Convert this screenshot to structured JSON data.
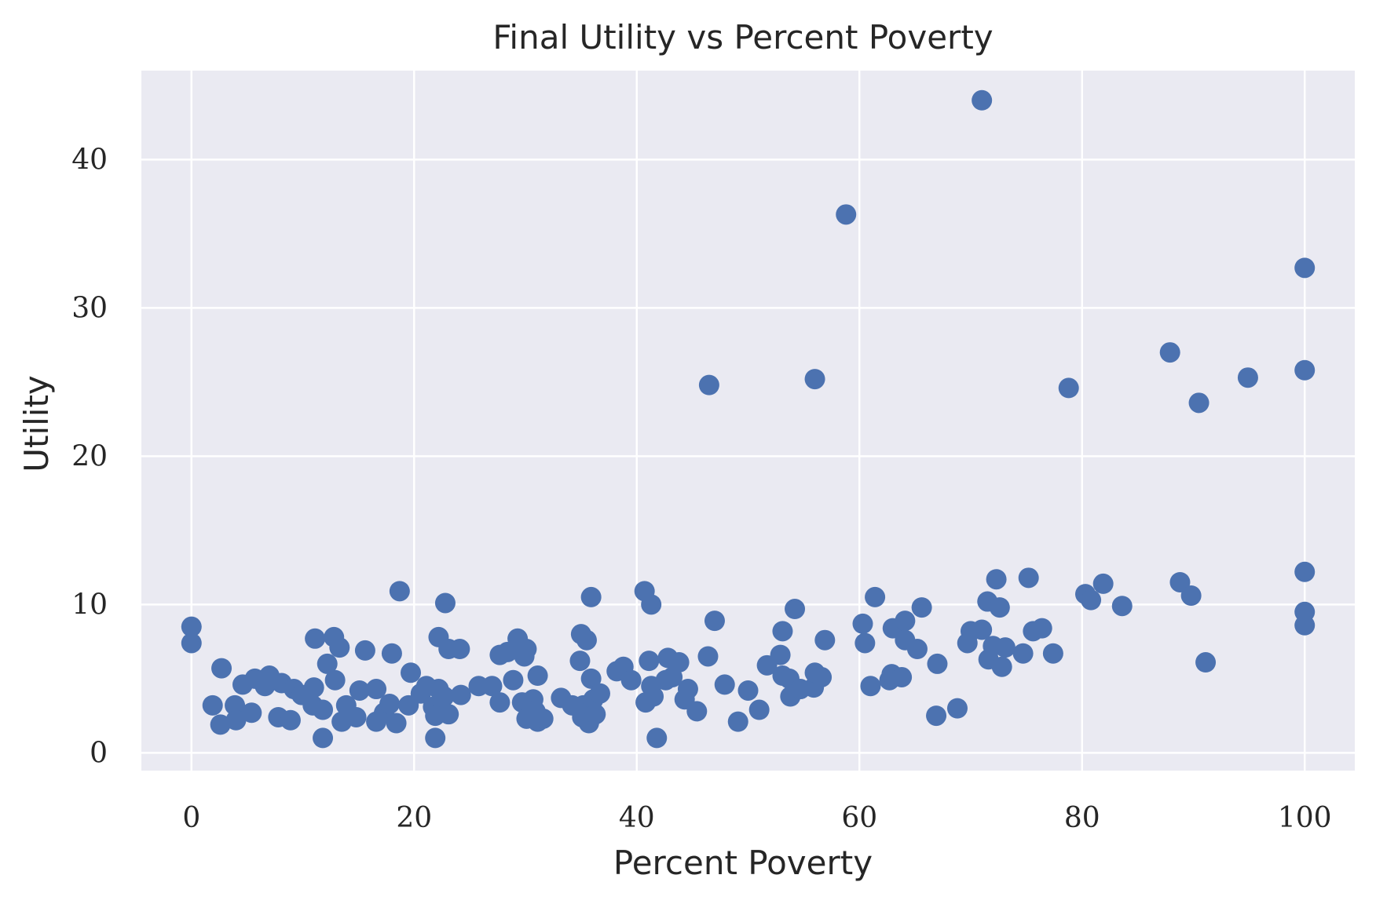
{
  "chart_data": {
    "type": "scatter",
    "title": "Final Utility vs Percent Poverty",
    "xlabel": "Percent Poverty",
    "ylabel": "Utility",
    "xlim": [
      -4.5,
      104.5
    ],
    "ylim": [
      -1.2,
      46
    ],
    "xticks": [
      0,
      20,
      40,
      60,
      80,
      100
    ],
    "yticks": [
      0,
      10,
      20,
      30,
      40
    ],
    "grid": true,
    "colors": {
      "background": "#eaeaf2",
      "grid": "#ffffff",
      "marker": "#4c72b0",
      "text": "#262626"
    },
    "points": [
      [
        0.0,
        8.5
      ],
      [
        0.0,
        7.4
      ],
      [
        1.9,
        3.2
      ],
      [
        2.7,
        5.7
      ],
      [
        2.6,
        1.9
      ],
      [
        3.9,
        3.2
      ],
      [
        4.0,
        2.2
      ],
      [
        4.6,
        4.6
      ],
      [
        5.4,
        2.7
      ],
      [
        5.7,
        5.0
      ],
      [
        6.6,
        4.5
      ],
      [
        7.0,
        5.2
      ],
      [
        7.8,
        2.4
      ],
      [
        8.1,
        4.7
      ],
      [
        8.9,
        2.2
      ],
      [
        9.2,
        4.3
      ],
      [
        9.9,
        3.9
      ],
      [
        10.9,
        3.2
      ],
      [
        11.0,
        4.4
      ],
      [
        11.1,
        7.7
      ],
      [
        11.8,
        1.0
      ],
      [
        11.8,
        2.9
      ],
      [
        12.2,
        6.0
      ],
      [
        12.8,
        7.8
      ],
      [
        12.9,
        4.9
      ],
      [
        13.3,
        7.1
      ],
      [
        13.5,
        2.1
      ],
      [
        13.9,
        3.2
      ],
      [
        14.8,
        2.4
      ],
      [
        15.1,
        4.2
      ],
      [
        15.6,
        6.9
      ],
      [
        16.6,
        2.1
      ],
      [
        16.6,
        4.3
      ],
      [
        17.3,
        2.7
      ],
      [
        17.8,
        3.3
      ],
      [
        18.0,
        6.7
      ],
      [
        18.4,
        2.0
      ],
      [
        18.7,
        10.9
      ],
      [
        19.5,
        3.2
      ],
      [
        19.7,
        5.4
      ],
      [
        20.6,
        4.0
      ],
      [
        21.1,
        4.5
      ],
      [
        21.7,
        3.1
      ],
      [
        21.9,
        2.5
      ],
      [
        21.9,
        1.0
      ],
      [
        22.2,
        4.3
      ],
      [
        22.2,
        7.8
      ],
      [
        22.7,
        3.8
      ],
      [
        22.8,
        10.1
      ],
      [
        23.1,
        7.0
      ],
      [
        23.1,
        2.6
      ],
      [
        24.1,
        7.0
      ],
      [
        24.2,
        3.9
      ],
      [
        25.8,
        4.5
      ],
      [
        27.0,
        4.5
      ],
      [
        27.7,
        6.6
      ],
      [
        27.7,
        3.4
      ],
      [
        28.4,
        6.8
      ],
      [
        28.9,
        4.9
      ],
      [
        29.3,
        7.7
      ],
      [
        29.7,
        3.4
      ],
      [
        29.9,
        6.5
      ],
      [
        30.1,
        7.0
      ],
      [
        30.1,
        2.3
      ],
      [
        30.7,
        3.6
      ],
      [
        30.9,
        2.8
      ],
      [
        31.1,
        5.2
      ],
      [
        31.1,
        2.1
      ],
      [
        31.6,
        2.3
      ],
      [
        33.2,
        3.7
      ],
      [
        34.2,
        3.2
      ],
      [
        34.9,
        6.2
      ],
      [
        35.0,
        8.0
      ],
      [
        35.1,
        2.4
      ],
      [
        35.2,
        3.2
      ],
      [
        35.5,
        7.6
      ],
      [
        35.7,
        2.0
      ],
      [
        35.9,
        10.5
      ],
      [
        35.9,
        5.0
      ],
      [
        36.1,
        3.6
      ],
      [
        36.3,
        2.6
      ],
      [
        36.7,
        4.0
      ],
      [
        38.2,
        5.5
      ],
      [
        38.8,
        5.8
      ],
      [
        39.5,
        4.9
      ],
      [
        40.7,
        10.9
      ],
      [
        40.8,
        3.4
      ],
      [
        41.1,
        6.2
      ],
      [
        41.3,
        10.0
      ],
      [
        41.3,
        4.5
      ],
      [
        41.5,
        3.8
      ],
      [
        41.8,
        1.0
      ],
      [
        42.6,
        4.9
      ],
      [
        42.8,
        6.4
      ],
      [
        43.2,
        5.1
      ],
      [
        43.8,
        6.1
      ],
      [
        44.3,
        3.6
      ],
      [
        44.6,
        4.3
      ],
      [
        45.4,
        2.8
      ],
      [
        46.4,
        6.5
      ],
      [
        46.5,
        24.8
      ],
      [
        47.0,
        8.9
      ],
      [
        47.9,
        4.6
      ],
      [
        49.1,
        2.1
      ],
      [
        50.0,
        4.2
      ],
      [
        51.0,
        2.9
      ],
      [
        51.7,
        5.9
      ],
      [
        52.9,
        6.6
      ],
      [
        53.1,
        8.2
      ],
      [
        53.1,
        5.2
      ],
      [
        53.7,
        5.0
      ],
      [
        53.8,
        3.8
      ],
      [
        54.2,
        9.7
      ],
      [
        54.7,
        4.3
      ],
      [
        55.9,
        4.4
      ],
      [
        56.0,
        5.4
      ],
      [
        56.0,
        25.2
      ],
      [
        56.6,
        5.1
      ],
      [
        56.9,
        7.6
      ],
      [
        58.8,
        36.3
      ],
      [
        60.3,
        8.7
      ],
      [
        60.5,
        7.4
      ],
      [
        61.0,
        4.5
      ],
      [
        61.4,
        10.5
      ],
      [
        62.7,
        4.9
      ],
      [
        62.9,
        5.3
      ],
      [
        63.0,
        8.4
      ],
      [
        63.8,
        5.1
      ],
      [
        64.1,
        8.9
      ],
      [
        64.1,
        7.6
      ],
      [
        65.2,
        7.0
      ],
      [
        65.6,
        9.8
      ],
      [
        66.9,
        2.5
      ],
      [
        67.0,
        6.0
      ],
      [
        68.8,
        3.0
      ],
      [
        69.7,
        7.4
      ],
      [
        70.0,
        8.2
      ],
      [
        71.0,
        8.3
      ],
      [
        71.0,
        44.0
      ],
      [
        71.5,
        10.2
      ],
      [
        71.6,
        6.3
      ],
      [
        72.0,
        7.2
      ],
      [
        72.3,
        11.7
      ],
      [
        72.6,
        9.8
      ],
      [
        72.8,
        5.8
      ],
      [
        73.1,
        7.1
      ],
      [
        74.7,
        6.7
      ],
      [
        75.2,
        11.8
      ],
      [
        75.6,
        8.2
      ],
      [
        76.4,
        8.4
      ],
      [
        77.4,
        6.7
      ],
      [
        78.8,
        24.6
      ],
      [
        80.3,
        10.7
      ],
      [
        80.8,
        10.3
      ],
      [
        81.9,
        11.4
      ],
      [
        83.6,
        9.9
      ],
      [
        87.9,
        27.0
      ],
      [
        88.8,
        11.5
      ],
      [
        89.8,
        10.6
      ],
      [
        90.5,
        23.6
      ],
      [
        91.1,
        6.1
      ],
      [
        94.9,
        25.3
      ],
      [
        100.0,
        32.7
      ],
      [
        100.0,
        25.8
      ],
      [
        100.0,
        12.2
      ],
      [
        100.0,
        9.5
      ],
      [
        100.0,
        8.6
      ]
    ]
  }
}
